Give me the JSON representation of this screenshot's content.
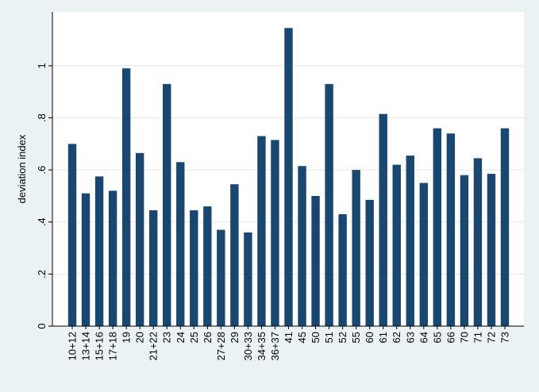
{
  "chart_data": {
    "type": "bar",
    "y_label": "deviation index",
    "categories": [
      "10+12",
      "13+14",
      "15+16",
      "17+18",
      "19",
      "20",
      "21+22",
      "23",
      "24",
      "25",
      "26",
      "27+28",
      "29",
      "30+33",
      "34+35",
      "36+37",
      "41",
      "45",
      "50",
      "51",
      "52",
      "55",
      "60",
      "61",
      "62",
      "63",
      "64",
      "65",
      "66",
      "70",
      "71",
      "72",
      "73"
    ],
    "values": [
      0.7,
      0.51,
      0.575,
      0.52,
      0.99,
      0.665,
      0.445,
      0.93,
      0.63,
      0.445,
      0.46,
      0.37,
      0.545,
      0.36,
      0.73,
      0.715,
      1.145,
      0.615,
      0.5,
      0.93,
      0.43,
      0.6,
      0.485,
      0.815,
      0.62,
      0.655,
      0.55,
      0.76,
      0.74,
      0.58,
      0.645,
      0.585,
      0.76
    ],
    "color": "#1a476f",
    "ylim": [
      0,
      1.207
    ],
    "yticks": [
      0,
      {
        "value": 0.2,
        "label": ".2"
      },
      {
        "value": 0.4,
        "label": ".4"
      },
      {
        "value": 0.6,
        "label": ".6"
      },
      {
        "value": 0.8,
        "label": ".8"
      },
      1
    ],
    "grid": true
  }
}
